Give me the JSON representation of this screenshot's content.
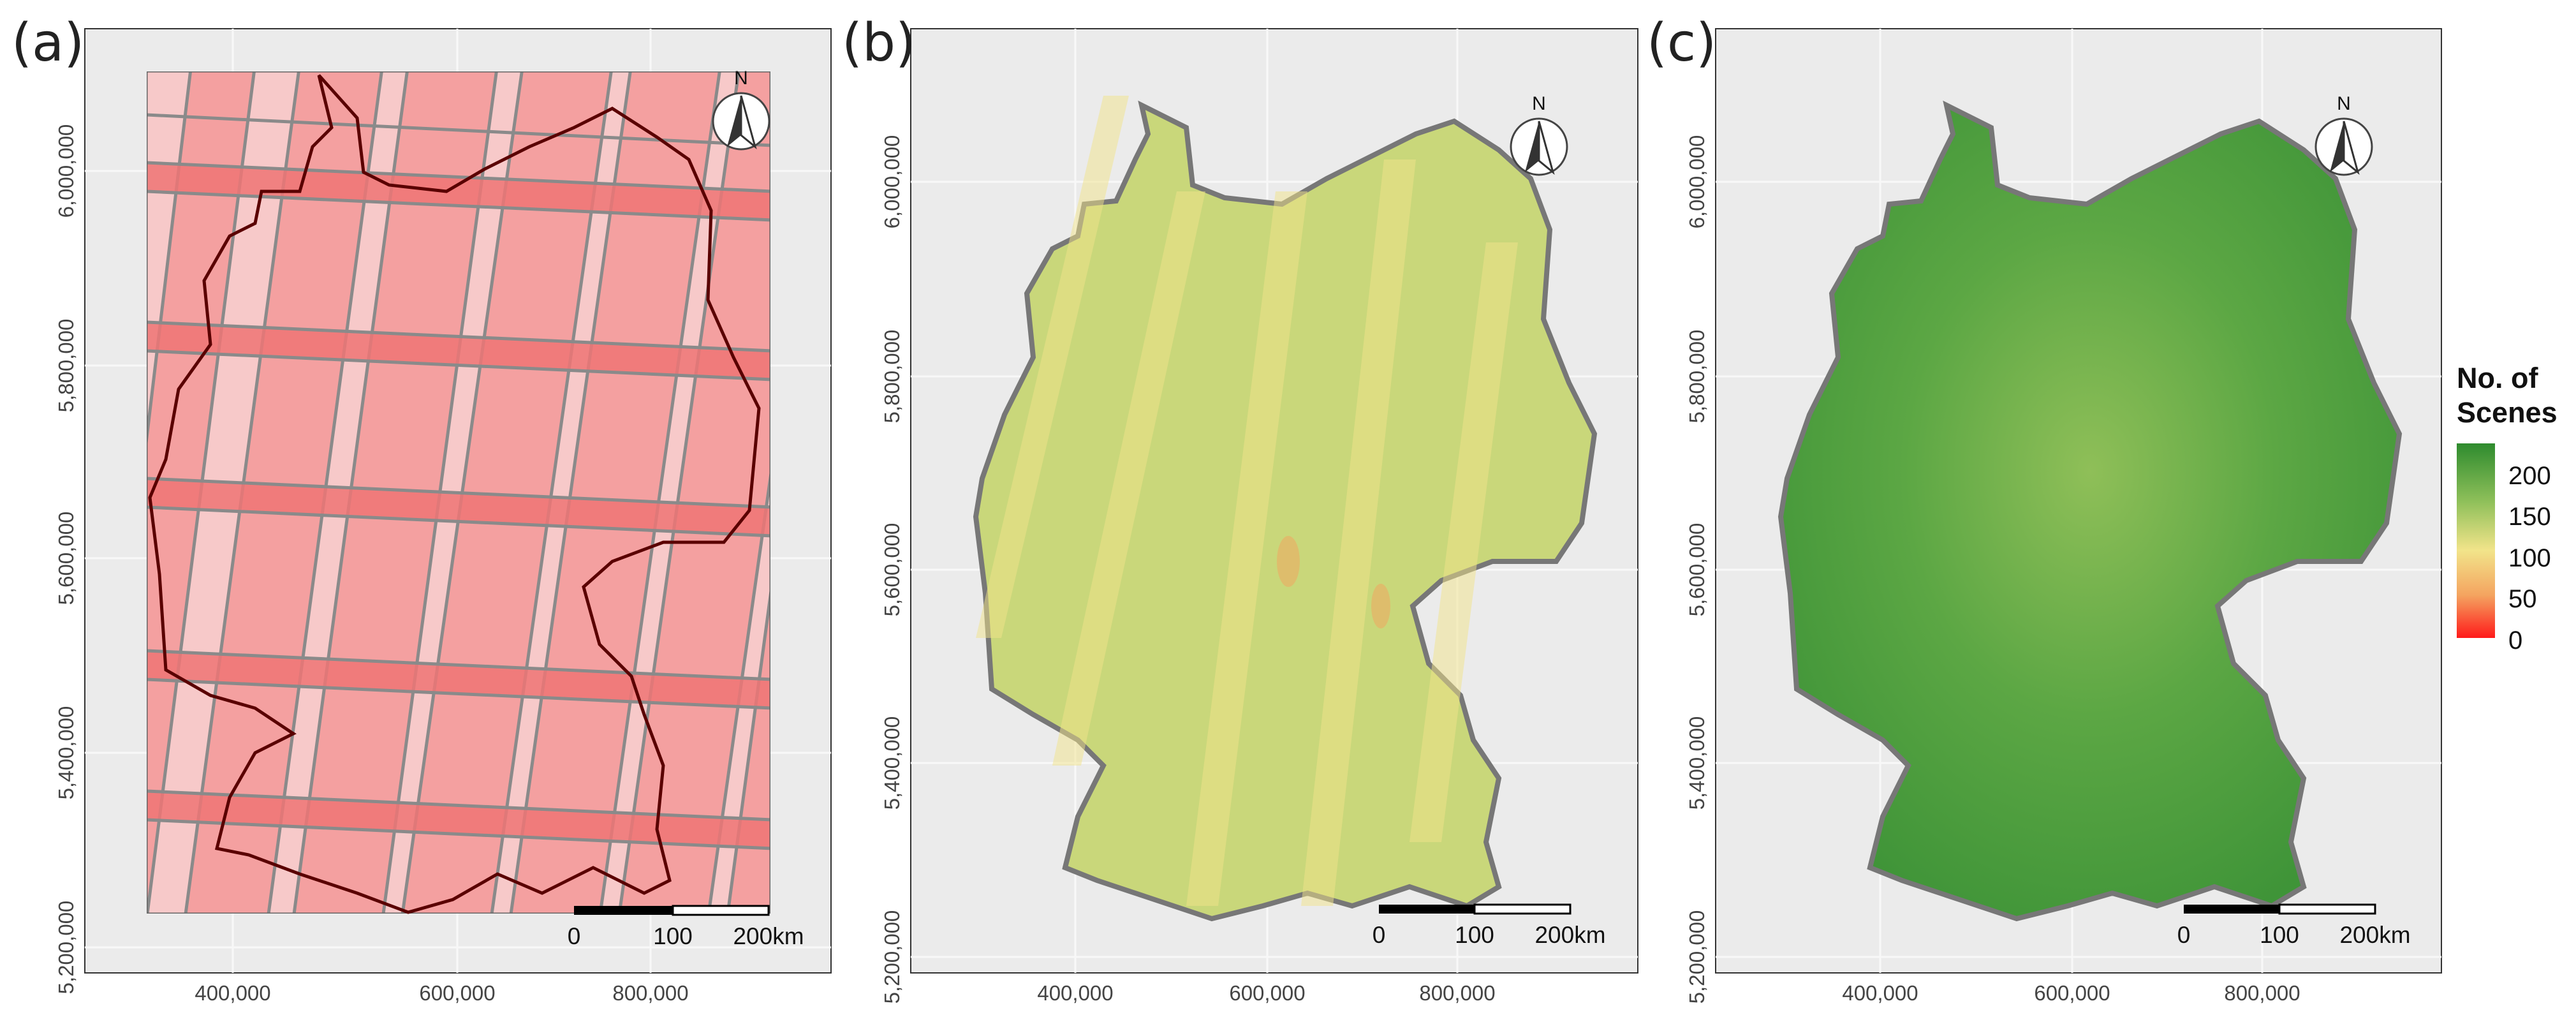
{
  "panels": [
    {
      "label": "(a)",
      "scalebar": [
        "0",
        "100",
        "200km"
      ]
    },
    {
      "label": "(b)",
      "scalebar": [
        "0",
        "100",
        "200km"
      ]
    },
    {
      "label": "(c)",
      "scalebar": [
        "0",
        "100",
        "200km"
      ]
    }
  ],
  "north": "N",
  "x_ticks": [
    "400,000",
    "600,000",
    "800,000"
  ],
  "y_ticks": [
    "6,000,000",
    "5,800,000",
    "5,600,000",
    "5,400,000",
    "5,200,000"
  ],
  "legend": {
    "title_line1": "No. of",
    "title_line2": "Scenes",
    "values": [
      "200",
      "150",
      "100",
      "50",
      "0"
    ],
    "colors": [
      "#2e8b2e",
      "#8fc05a",
      "#f2e48a",
      "#f4a460",
      "#ff1a1a"
    ]
  },
  "colors": {
    "panel_bg": "#ebebeb",
    "grid": "#f8f8f8",
    "tile_fill": "#f4a0a0",
    "tile_overlap": "#ee7474",
    "tile_edge": "#8a8a8a",
    "border_a": "#5a0000",
    "map_b": "#c9d77a",
    "map_c": "#4c9e3c",
    "map_outline": "#777777"
  }
}
